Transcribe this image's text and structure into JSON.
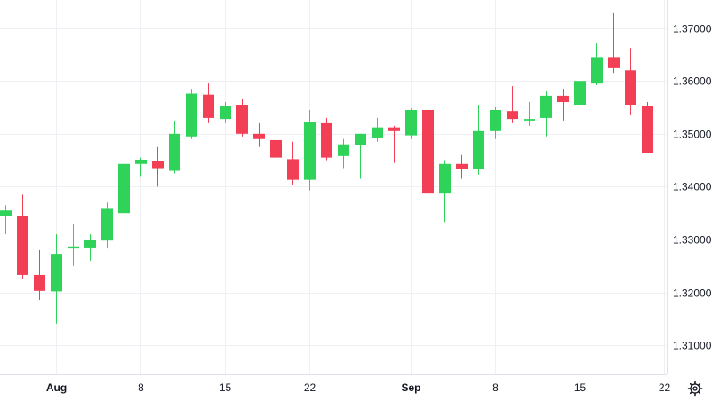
{
  "chart_data": {
    "type": "candlestick",
    "colors": {
      "up": "#2fd35a",
      "down": "#f23f56",
      "last_price_line": "#d64545",
      "grid": "#eef0f3"
    },
    "y_axis": {
      "ticks": [
        "1.37000",
        "1.36000",
        "1.35000",
        "1.34000",
        "1.33000",
        "1.32000",
        "1.31000"
      ],
      "tick_values": [
        1.37,
        1.36,
        1.35,
        1.34,
        1.33,
        1.32,
        1.31
      ],
      "range": [
        1.3045,
        1.3753
      ],
      "side": "right"
    },
    "x_axis": {
      "labels": [
        {
          "text": "Aug",
          "index": 3,
          "bold": true
        },
        {
          "text": "8",
          "index": 8,
          "bold": false
        },
        {
          "text": "15",
          "index": 13,
          "bold": false
        },
        {
          "text": "22",
          "index": 18,
          "bold": false
        },
        {
          "text": "Sep",
          "index": 24,
          "bold": true
        },
        {
          "text": "8",
          "index": 29,
          "bold": false
        },
        {
          "text": "15",
          "index": 34,
          "bold": false
        },
        {
          "text": "22",
          "index": 39,
          "bold": false
        }
      ]
    },
    "last_price": 1.3464,
    "candles": [
      {
        "o": 1.3345,
        "h": 1.3365,
        "l": 1.331,
        "c": 1.3355
      },
      {
        "o": 1.3345,
        "h": 1.3385,
        "l": 1.3225,
        "c": 1.3233
      },
      {
        "o": 1.3233,
        "h": 1.328,
        "l": 1.3186,
        "c": 1.3203
      },
      {
        "o": 1.3202,
        "h": 1.331,
        "l": 1.3141,
        "c": 1.3273
      },
      {
        "o": 1.3283,
        "h": 1.333,
        "l": 1.325,
        "c": 1.3287
      },
      {
        "o": 1.3285,
        "h": 1.331,
        "l": 1.326,
        "c": 1.33
      },
      {
        "o": 1.3298,
        "h": 1.337,
        "l": 1.3283,
        "c": 1.3358
      },
      {
        "o": 1.335,
        "h": 1.3447,
        "l": 1.3345,
        "c": 1.3443
      },
      {
        "o": 1.3443,
        "h": 1.3455,
        "l": 1.342,
        "c": 1.3451
      },
      {
        "o": 1.3448,
        "h": 1.3475,
        "l": 1.34,
        "c": 1.3435
      },
      {
        "o": 1.343,
        "h": 1.3525,
        "l": 1.3425,
        "c": 1.35
      },
      {
        "o": 1.3495,
        "h": 1.3585,
        "l": 1.349,
        "c": 1.3576
      },
      {
        "o": 1.3574,
        "h": 1.3595,
        "l": 1.352,
        "c": 1.353
      },
      {
        "o": 1.3528,
        "h": 1.356,
        "l": 1.352,
        "c": 1.3553
      },
      {
        "o": 1.3555,
        "h": 1.3565,
        "l": 1.3495,
        "c": 1.35
      },
      {
        "o": 1.35,
        "h": 1.352,
        "l": 1.3475,
        "c": 1.349
      },
      {
        "o": 1.3488,
        "h": 1.3505,
        "l": 1.3445,
        "c": 1.3455
      },
      {
        "o": 1.3452,
        "h": 1.3485,
        "l": 1.3403,
        "c": 1.3413
      },
      {
        "o": 1.3413,
        "h": 1.3545,
        "l": 1.3393,
        "c": 1.3523
      },
      {
        "o": 1.352,
        "h": 1.353,
        "l": 1.345,
        "c": 1.3455
      },
      {
        "o": 1.3458,
        "h": 1.349,
        "l": 1.3435,
        "c": 1.348
      },
      {
        "o": 1.3478,
        "h": 1.35,
        "l": 1.3415,
        "c": 1.35
      },
      {
        "o": 1.3493,
        "h": 1.353,
        "l": 1.3485,
        "c": 1.3512
      },
      {
        "o": 1.3512,
        "h": 1.3515,
        "l": 1.3445,
        "c": 1.3505
      },
      {
        "o": 1.3497,
        "h": 1.3548,
        "l": 1.349,
        "c": 1.3545
      },
      {
        "o": 1.3545,
        "h": 1.355,
        "l": 1.334,
        "c": 1.3387
      },
      {
        "o": 1.3387,
        "h": 1.345,
        "l": 1.3333,
        "c": 1.3443
      },
      {
        "o": 1.3443,
        "h": 1.346,
        "l": 1.3415,
        "c": 1.3433
      },
      {
        "o": 1.3433,
        "h": 1.3555,
        "l": 1.3423,
        "c": 1.3505
      },
      {
        "o": 1.3505,
        "h": 1.355,
        "l": 1.349,
        "c": 1.3545
      },
      {
        "o": 1.3543,
        "h": 1.359,
        "l": 1.352,
        "c": 1.3528
      },
      {
        "o": 1.3525,
        "h": 1.356,
        "l": 1.3515,
        "c": 1.3528
      },
      {
        "o": 1.353,
        "h": 1.358,
        "l": 1.3495,
        "c": 1.3572
      },
      {
        "o": 1.3572,
        "h": 1.3585,
        "l": 1.3525,
        "c": 1.356
      },
      {
        "o": 1.3555,
        "h": 1.362,
        "l": 1.3548,
        "c": 1.36
      },
      {
        "o": 1.3595,
        "h": 1.3672,
        "l": 1.3592,
        "c": 1.3645
      },
      {
        "o": 1.3645,
        "h": 1.3728,
        "l": 1.3615,
        "c": 1.3624
      },
      {
        "o": 1.362,
        "h": 1.3662,
        "l": 1.3535,
        "c": 1.3555
      },
      {
        "o": 1.3553,
        "h": 1.356,
        "l": 1.3464,
        "c": 1.3464
      }
    ]
  },
  "settings_button": {
    "icon": "gear-icon"
  }
}
